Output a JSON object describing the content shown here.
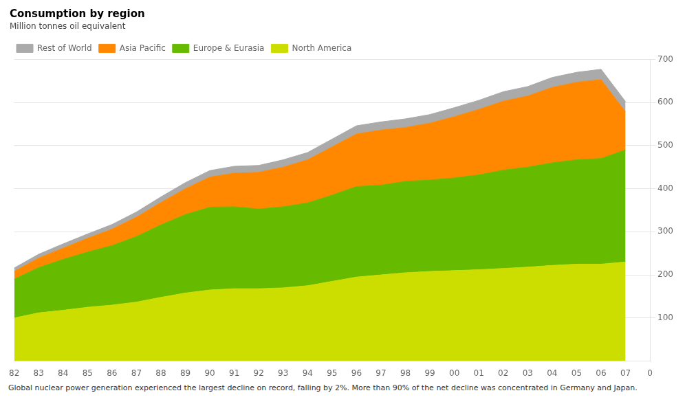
{
  "chart_data": {
    "type": "area",
    "title": "Consumption by region",
    "subtitle": "Million tonnes oil equivalent",
    "footnote": "Global nuclear power generation experienced the largest decline on record, falling by 2%. More than 90% of the net decline was concentrated in Germany and Japan.",
    "categories": [
      "82",
      "83",
      "84",
      "85",
      "86",
      "87",
      "88",
      "89",
      "90",
      "91",
      "92",
      "93",
      "94",
      "95",
      "96",
      "97",
      "98",
      "99",
      "00",
      "01",
      "02",
      "03",
      "04",
      "05",
      "06",
      "07",
      "0"
    ],
    "series": [
      {
        "name": "North America",
        "color": "#ccdd00",
        "values": [
          100,
          112,
          118,
          125,
          130,
          137,
          148,
          158,
          165,
          168,
          168,
          170,
          175,
          185,
          195,
          200,
          205,
          208,
          210,
          212,
          215,
          218,
          222,
          225,
          225,
          230,
          null
        ]
      },
      {
        "name": "Europe & Eurasia",
        "color": "#66bb00",
        "values": [
          90,
          105,
          118,
          128,
          138,
          152,
          168,
          182,
          192,
          190,
          185,
          188,
          192,
          200,
          210,
          208,
          212,
          212,
          215,
          220,
          228,
          232,
          238,
          242,
          245,
          260,
          null
        ]
      },
      {
        "name": "Asia Pacific",
        "color": "#ff8800",
        "values": [
          18,
          22,
          26,
          32,
          38,
          45,
          52,
          60,
          70,
          78,
          85,
          92,
          100,
          112,
          122,
          128,
          125,
          132,
          142,
          152,
          160,
          165,
          175,
          180,
          183,
          88,
          null
        ]
      },
      {
        "name": "Rest of World",
        "color": "#aaaaaa",
        "values": [
          8,
          9,
          10,
          10,
          11,
          12,
          13,
          14,
          15,
          16,
          16,
          17,
          17,
          18,
          19,
          19,
          20,
          20,
          21,
          21,
          22,
          22,
          23,
          23,
          24,
          24,
          null
        ]
      }
    ],
    "stacked": true,
    "ylim": [
      0,
      700
    ],
    "yticks": [
      100,
      200,
      300,
      400,
      500,
      600,
      700
    ],
    "grid": true,
    "legend": "top"
  }
}
